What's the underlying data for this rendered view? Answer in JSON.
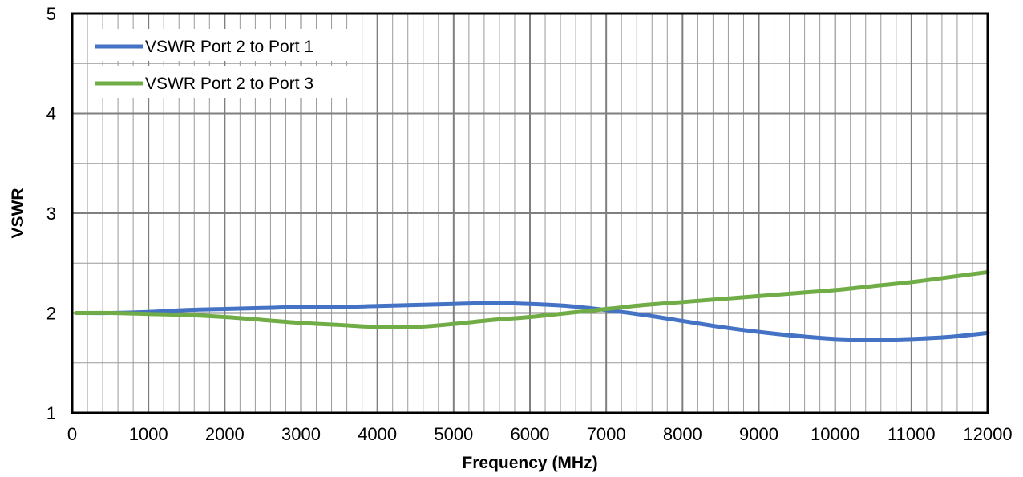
{
  "chart_data": {
    "type": "line",
    "title": "",
    "xlabel": "Frequency (MHz)",
    "ylabel": "VSWR",
    "xlim": [
      0,
      12000
    ],
    "ylim": [
      1,
      5
    ],
    "x_ticks": [
      0,
      1000,
      2000,
      3000,
      4000,
      5000,
      6000,
      7000,
      8000,
      9000,
      10000,
      11000,
      12000
    ],
    "y_ticks": [
      1,
      2,
      3,
      4,
      5
    ],
    "x_minor_step": 200,
    "y_minor_step": 0.5,
    "grid": true,
    "legend_position": "top-left",
    "series": [
      {
        "name": "VSWR Port 2 to Port 1",
        "color": "#4472C4",
        "x": [
          50,
          500,
          1000,
          1500,
          2000,
          2500,
          3000,
          3500,
          4000,
          4500,
          5000,
          5500,
          6000,
          6500,
          7000,
          7500,
          8000,
          8500,
          9000,
          9500,
          10000,
          10500,
          11000,
          11500,
          12000
        ],
        "y": [
          2.0,
          2.0,
          2.01,
          2.03,
          2.04,
          2.05,
          2.06,
          2.06,
          2.07,
          2.08,
          2.09,
          2.1,
          2.09,
          2.07,
          2.03,
          1.98,
          1.92,
          1.86,
          1.81,
          1.77,
          1.74,
          1.73,
          1.74,
          1.76,
          1.8
        ]
      },
      {
        "name": "VSWR Port 2 to Port 3",
        "color": "#70AD47",
        "x": [
          50,
          500,
          1000,
          1500,
          2000,
          2500,
          3000,
          3500,
          4000,
          4500,
          5000,
          5500,
          6000,
          6500,
          7000,
          7500,
          8000,
          8500,
          9000,
          9500,
          10000,
          10500,
          11000,
          11500,
          12000
        ],
        "y": [
          2.0,
          2.0,
          1.99,
          1.98,
          1.96,
          1.93,
          1.9,
          1.88,
          1.86,
          1.86,
          1.89,
          1.93,
          1.96,
          2.0,
          2.04,
          2.08,
          2.11,
          2.14,
          2.17,
          2.2,
          2.23,
          2.27,
          2.31,
          2.36,
          2.41
        ]
      }
    ]
  }
}
